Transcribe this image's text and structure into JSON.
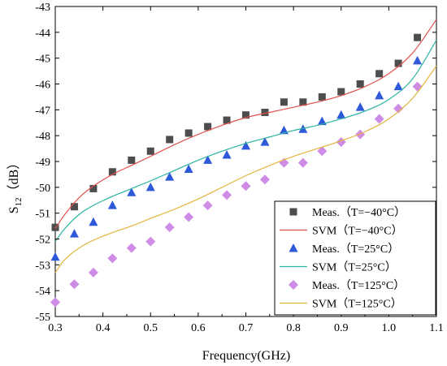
{
  "chart_data": {
    "type": "scatter",
    "title": "",
    "xlabel": "Frequency(GHz)",
    "ylabel_main": "S",
    "ylabel_sub": "12",
    "ylabel_unit": "（dB）",
    "xlim": [
      0.3,
      1.1
    ],
    "ylim": [
      -55,
      -43
    ],
    "xticks": [
      "0.3",
      "0.4",
      "0.5",
      "0.6",
      "0.7",
      "0.8",
      "0.9",
      "1.0",
      "1.1"
    ],
    "yticks": [
      "-55",
      "-54",
      "-53",
      "-52",
      "-51",
      "-50",
      "-49",
      "-48",
      "-47",
      "-46",
      "-45",
      "-44",
      "-43"
    ],
    "grid": false,
    "legend_position": "bottom-right",
    "series": [
      {
        "name": "Meas.（T=−40°C）",
        "kind": "marker",
        "marker": "square",
        "color": "#4d4d4d",
        "x": [
          0.3,
          0.34,
          0.38,
          0.42,
          0.46,
          0.5,
          0.54,
          0.58,
          0.62,
          0.66,
          0.7,
          0.74,
          0.78,
          0.82,
          0.86,
          0.9,
          0.94,
          0.98,
          1.02,
          1.06
        ],
        "y": [
          -51.55,
          -50.75,
          -50.05,
          -49.4,
          -48.95,
          -48.6,
          -48.15,
          -47.9,
          -47.65,
          -47.4,
          -47.2,
          -47.1,
          -46.7,
          -46.7,
          -46.5,
          -46.3,
          -46.0,
          -45.6,
          -45.2,
          -44.2
        ]
      },
      {
        "name": "SVM（T=−40°C）",
        "kind": "line",
        "color": "#e0504e",
        "x": [
          0.3,
          0.32,
          0.35,
          0.38,
          0.42,
          0.46,
          0.5,
          0.55,
          0.6,
          0.65,
          0.7,
          0.75,
          0.8,
          0.85,
          0.9,
          0.95,
          1.0,
          1.05,
          1.1
        ],
        "y": [
          -51.6,
          -51.05,
          -50.4,
          -49.95,
          -49.5,
          -49.15,
          -48.8,
          -48.35,
          -47.95,
          -47.6,
          -47.3,
          -47.1,
          -46.9,
          -46.7,
          -46.45,
          -46.1,
          -45.6,
          -44.8,
          -43.5
        ]
      },
      {
        "name": "Meas.（T=25°C）",
        "kind": "marker",
        "marker": "triangle",
        "color": "#2e59d9",
        "x": [
          0.3,
          0.34,
          0.38,
          0.42,
          0.46,
          0.5,
          0.54,
          0.58,
          0.62,
          0.66,
          0.7,
          0.74,
          0.78,
          0.82,
          0.86,
          0.9,
          0.94,
          0.98,
          1.02,
          1.06
        ],
        "y": [
          -52.7,
          -51.8,
          -51.35,
          -50.7,
          -50.2,
          -50.0,
          -49.6,
          -49.3,
          -48.95,
          -48.75,
          -48.4,
          -48.25,
          -47.8,
          -47.75,
          -47.45,
          -47.2,
          -46.9,
          -46.45,
          -46.1,
          -45.1
        ]
      },
      {
        "name": "SVM（T=25°C）",
        "kind": "line",
        "color": "#2ab3a1",
        "x": [
          0.3,
          0.32,
          0.35,
          0.38,
          0.42,
          0.46,
          0.5,
          0.55,
          0.6,
          0.65,
          0.7,
          0.75,
          0.8,
          0.85,
          0.9,
          0.95,
          1.0,
          1.05,
          1.1
        ],
        "y": [
          -52.1,
          -51.6,
          -51.05,
          -50.7,
          -50.35,
          -50.05,
          -49.75,
          -49.35,
          -48.95,
          -48.6,
          -48.3,
          -48.05,
          -47.8,
          -47.6,
          -47.35,
          -47.05,
          -46.6,
          -45.8,
          -44.3
        ]
      },
      {
        "name": "Meas.（T=125°C）",
        "kind": "marker",
        "marker": "diamond",
        "color": "#cf8ce6",
        "x": [
          0.3,
          0.34,
          0.38,
          0.42,
          0.46,
          0.5,
          0.54,
          0.58,
          0.62,
          0.66,
          0.7,
          0.74,
          0.78,
          0.82,
          0.86,
          0.9,
          0.94,
          0.98,
          1.02,
          1.06
        ],
        "y": [
          -54.45,
          -53.75,
          -53.3,
          -52.75,
          -52.35,
          -52.1,
          -51.55,
          -51.15,
          -50.7,
          -50.3,
          -49.95,
          -49.7,
          -49.05,
          -49.05,
          -48.6,
          -48.25,
          -47.95,
          -47.35,
          -46.95,
          -46.1
        ]
      },
      {
        "name": "SVM（T=125°C）",
        "kind": "line",
        "color": "#e2b53d",
        "x": [
          0.3,
          0.32,
          0.35,
          0.38,
          0.42,
          0.46,
          0.5,
          0.55,
          0.6,
          0.65,
          0.7,
          0.75,
          0.8,
          0.85,
          0.9,
          0.95,
          1.0,
          1.05,
          1.1
        ],
        "y": [
          -53.3,
          -52.8,
          -52.35,
          -52.05,
          -51.75,
          -51.5,
          -51.2,
          -50.85,
          -50.45,
          -50.0,
          -49.55,
          -49.15,
          -48.8,
          -48.5,
          -48.2,
          -47.85,
          -47.35,
          -46.55,
          -45.3
        ]
      }
    ]
  }
}
